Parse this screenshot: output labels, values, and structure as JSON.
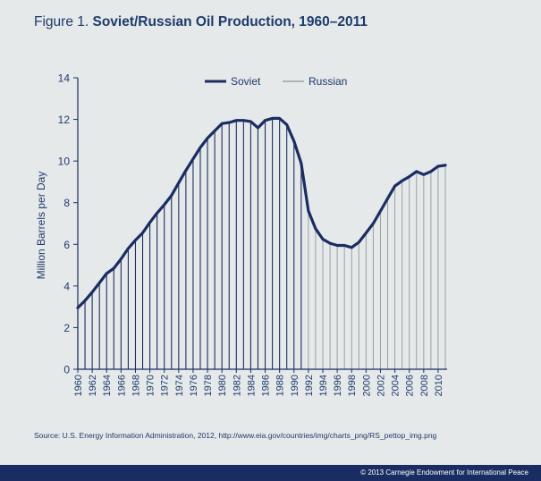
{
  "figure": {
    "prefix": "Figure 1.",
    "title": "Soviet/Russian Oil Production, 1960–2011"
  },
  "source": "Source: U.S. Energy Information Administration, 2012, http://www.eia.gov/countries/img/charts_png/RS_pettop_img.png",
  "footer": {
    "copyright": "© 2013 Carnegie Endowment for International Peace"
  },
  "colors": {
    "background": "#e6e9ea",
    "soviet": "#1a2d62",
    "russian": "#9a9fa4",
    "text": "#1e3a6b",
    "footer": "#1a2d62"
  },
  "chart_data": {
    "type": "line",
    "title": "Soviet/Russian Oil Production, 1960–2011",
    "xlabel": "",
    "ylabel": "Million Barrels per Day",
    "ylim": [
      0,
      14
    ],
    "yticks": [
      "0",
      "2",
      "4",
      "6",
      "8",
      "10",
      "12",
      "14"
    ],
    "xticks": [
      "1960",
      "1962",
      "1964",
      "1966",
      "1968",
      "1970",
      "1972",
      "1974",
      "1976",
      "1978",
      "1980",
      "1982",
      "1984",
      "1986",
      "1988",
      "1990",
      "1992",
      "1994",
      "1996",
      "1998",
      "2000",
      "2002",
      "2004",
      "2006",
      "2008",
      "2010"
    ],
    "legend_position": "top-center",
    "series": [
      {
        "name": "Soviet",
        "x": [
          1960,
          1961,
          1962,
          1963,
          1964,
          1965,
          1966,
          1967,
          1968,
          1969,
          1970,
          1971,
          1972,
          1973,
          1974,
          1975,
          1976,
          1977,
          1978,
          1979,
          1980,
          1981,
          1982,
          1983,
          1984,
          1985,
          1986,
          1987,
          1988,
          1989,
          1990,
          1991
        ],
        "values": [
          2.95,
          3.3,
          3.7,
          4.15,
          4.6,
          4.85,
          5.3,
          5.8,
          6.2,
          6.55,
          7.05,
          7.5,
          7.9,
          8.35,
          8.95,
          9.55,
          10.1,
          10.65,
          11.1,
          11.45,
          11.8,
          11.85,
          11.95,
          11.95,
          11.9,
          11.6,
          11.95,
          12.05,
          12.05,
          11.75,
          10.95,
          9.9
        ]
      },
      {
        "name": "Russian",
        "x": [
          1992,
          1993,
          1994,
          1995,
          1996,
          1997,
          1998,
          1999,
          2000,
          2001,
          2002,
          2003,
          2004,
          2005,
          2006,
          2007,
          2008,
          2009,
          2010,
          2011
        ],
        "values": [
          7.6,
          6.75,
          6.25,
          6.05,
          5.95,
          5.95,
          5.85,
          6.1,
          6.55,
          7.0,
          7.6,
          8.2,
          8.8,
          9.05,
          9.25,
          9.5,
          9.35,
          9.5,
          9.75,
          9.8
        ]
      }
    ]
  }
}
